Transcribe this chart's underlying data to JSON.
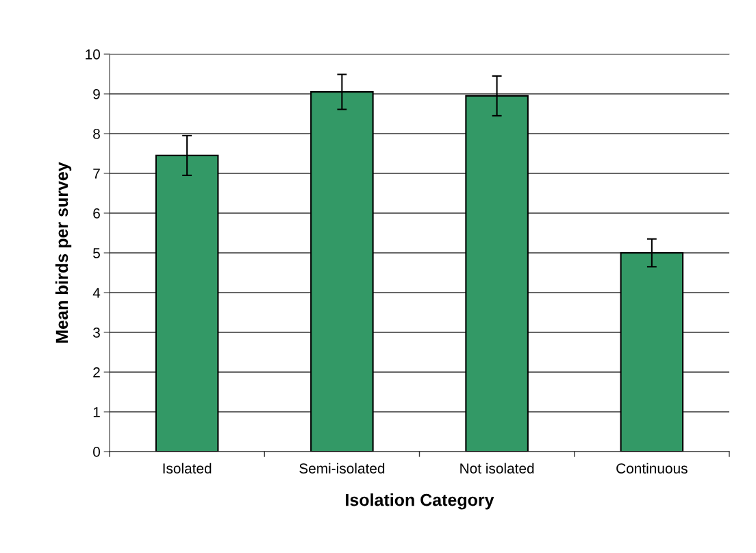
{
  "chart_data": {
    "type": "bar",
    "xlabel": "Isolation Category",
    "ylabel": "Mean birds per survey",
    "categories": [
      "Isolated",
      "Semi-isolated",
      "Not isolated",
      "Continuous"
    ],
    "values": [
      7.45,
      9.05,
      8.95,
      5.0
    ],
    "errors": [
      0.5,
      0.44,
      0.5,
      0.35
    ],
    "color": "#339966",
    "ylim": [
      0,
      10
    ],
    "yticks": [
      0,
      1,
      2,
      3,
      4,
      5,
      6,
      7,
      8,
      9,
      10
    ],
    "grid": "y"
  }
}
